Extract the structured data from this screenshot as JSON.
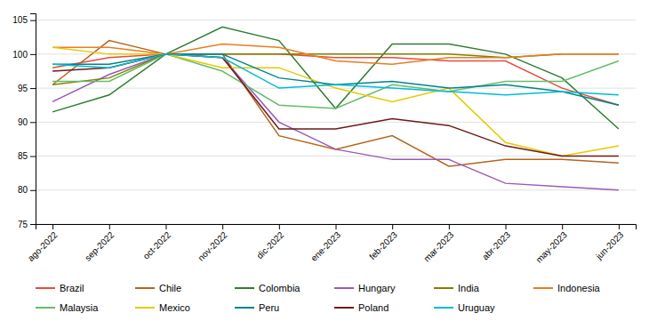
{
  "chart_data": {
    "type": "line",
    "categories": [
      "ago-2022",
      "sep-2022",
      "oct-2022",
      "nov-2022",
      "dic-2022",
      "ene-2023",
      "feb-2023",
      "mar-2023",
      "abr-2023",
      "may-2023",
      "jun-2023"
    ],
    "series": [
      {
        "name": "Brazil",
        "color": "#e74c3c",
        "values": [
          98.0,
          99.5,
          100.0,
          100.0,
          100.0,
          99.5,
          99.5,
          99.0,
          99.0,
          95.0,
          92.5
        ]
      },
      {
        "name": "Chile",
        "color": "#b5651d",
        "values": [
          95.5,
          102.0,
          100.0,
          100.0,
          88.0,
          86.0,
          88.0,
          83.5,
          84.5,
          84.5,
          84.0
        ]
      },
      {
        "name": "Colombia",
        "color": "#2e7d32",
        "values": [
          91.5,
          94.0,
          100.0,
          104.0,
          102.0,
          92.0,
          101.5,
          101.5,
          100.0,
          96.5,
          89.0
        ]
      },
      {
        "name": "Hungary",
        "color": "#9b59b6",
        "values": [
          93.0,
          97.0,
          100.0,
          99.5,
          90.0,
          86.0,
          84.5,
          84.5,
          81.0,
          80.5,
          80.0
        ]
      },
      {
        "name": "India",
        "color": "#808000",
        "values": [
          95.5,
          96.5,
          100.0,
          100.0,
          100.0,
          100.0,
          100.0,
          100.0,
          99.5,
          100.0,
          100.0
        ]
      },
      {
        "name": "Indonesia",
        "color": "#e67e22",
        "values": [
          101.0,
          101.0,
          100.0,
          101.5,
          101.0,
          99.0,
          98.5,
          99.5,
          99.5,
          100.0,
          100.0
        ]
      },
      {
        "name": "Malaysia",
        "color": "#66bb6a",
        "values": [
          96.0,
          96.0,
          100.0,
          97.5,
          92.5,
          92.0,
          95.5,
          94.5,
          96.0,
          96.0,
          99.0
        ]
      },
      {
        "name": "Mexico",
        "color": "#e8c800",
        "values": [
          101.0,
          100.0,
          100.0,
          98.0,
          98.0,
          95.0,
          93.0,
          95.0,
          87.0,
          85.0,
          86.5
        ]
      },
      {
        "name": "Peru",
        "color": "#00838f",
        "values": [
          98.5,
          98.5,
          100.0,
          100.0,
          96.5,
          95.5,
          96.0,
          95.0,
          95.5,
          94.5,
          92.5
        ]
      },
      {
        "name": "Poland",
        "color": "#6d1a1a",
        "values": [
          97.5,
          98.0,
          100.0,
          99.5,
          89.0,
          89.0,
          90.5,
          89.5,
          86.5,
          85.0,
          85.0
        ]
      },
      {
        "name": "Uruguay",
        "color": "#00bcd4",
        "values": [
          98.5,
          98.0,
          100.0,
          99.5,
          95.0,
          95.5,
          95.0,
          94.5,
          94.0,
          94.5,
          94.0
        ]
      }
    ],
    "ylim": [
      75,
      106
    ],
    "yticks": [
      75,
      80,
      85,
      90,
      95,
      100,
      105
    ],
    "grid": true,
    "legend": "bottom"
  }
}
